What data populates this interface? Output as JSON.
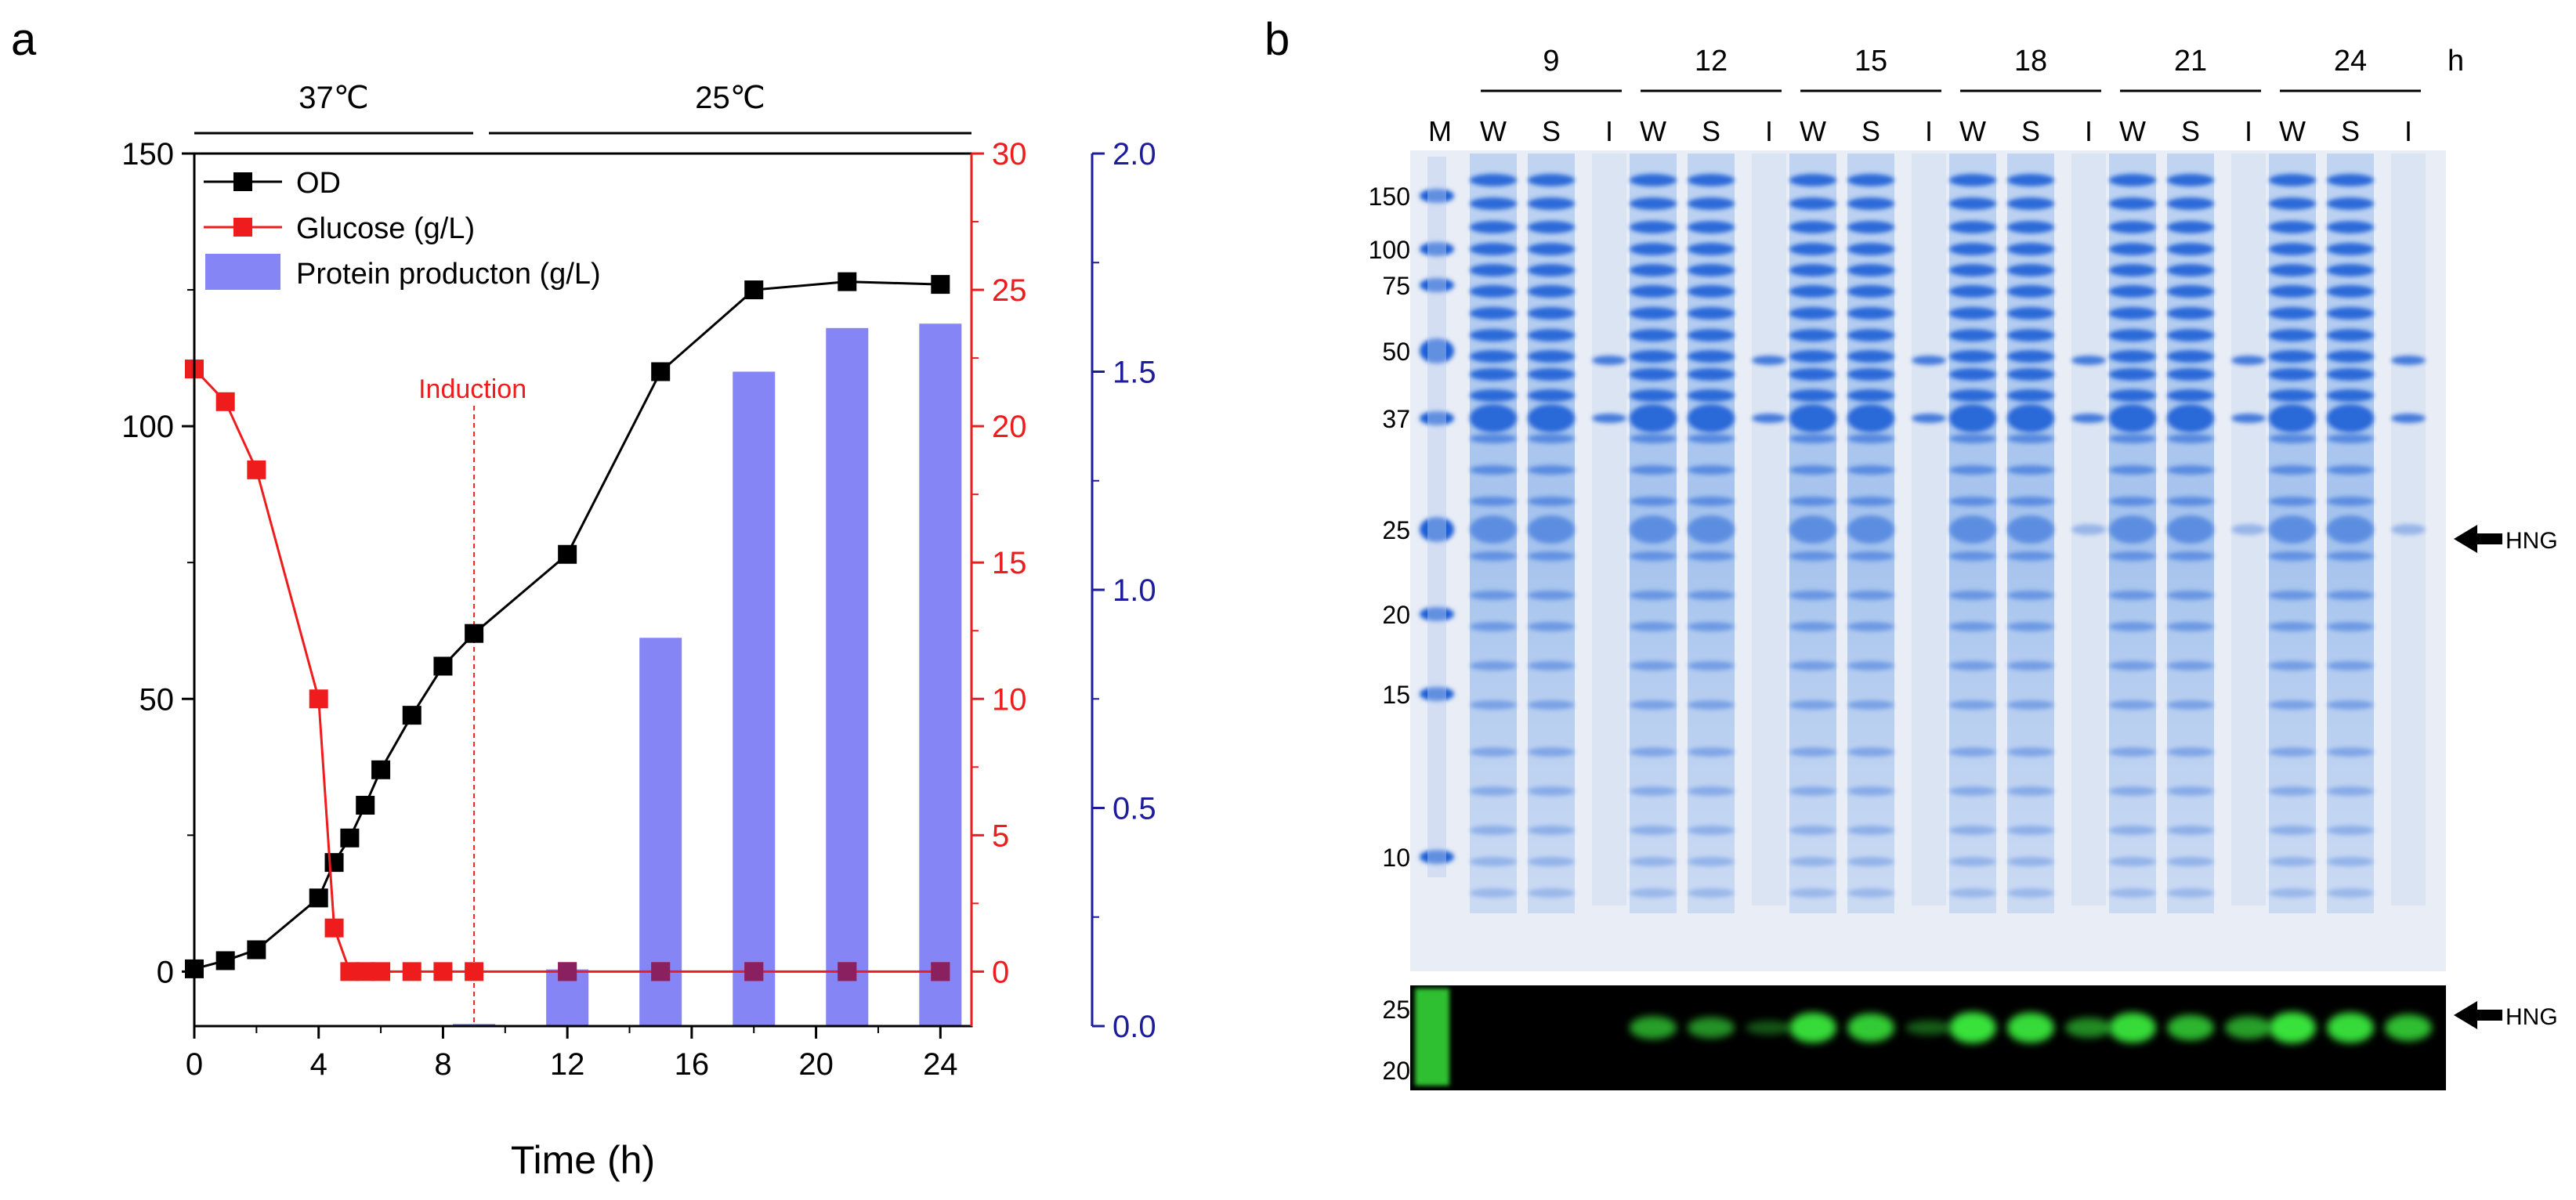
{
  "panels": {
    "a": "a",
    "b": "b"
  },
  "chart_data": {
    "type": "bar",
    "xlabel": "Time (h)",
    "xlim": [
      0,
      25
    ],
    "xticks": [
      "0",
      "4",
      "8",
      "12",
      "16",
      "20",
      "24"
    ],
    "temperature_phases": [
      {
        "label": "37℃",
        "range": [
          0,
          9
        ]
      },
      {
        "label": "25℃",
        "range": [
          9,
          25
        ]
      }
    ],
    "annotation": {
      "text": "Induction",
      "x": 9,
      "color": "#ee1c1c"
    },
    "axes": {
      "left": {
        "ylim": [
          -10,
          150
        ],
        "ticks": [
          "0",
          "50",
          "100",
          "150"
        ],
        "color": "#000000"
      },
      "right1": {
        "ylim": [
          -2,
          30
        ],
        "ticks": [
          "0",
          "5",
          "10",
          "15",
          "20",
          "25",
          "30"
        ],
        "color": "#ee1c1c"
      },
      "right2": {
        "ylim": [
          0,
          2.0
        ],
        "ticks": [
          "0.0",
          "0.5",
          "1.0",
          "1.5",
          "2.0"
        ],
        "color": "#1d1d9b"
      }
    },
    "legend": {
      "position": "top-left",
      "entries": [
        "OD",
        "Glucose (g/L)",
        "Protein producton (g/L)"
      ]
    },
    "series": [
      {
        "name": "OD",
        "type": "line",
        "axis": "left",
        "color": "#000000",
        "x": [
          0,
          1,
          2,
          4,
          4.5,
          5,
          5.5,
          6,
          7,
          8,
          9,
          12,
          15,
          18,
          21,
          24
        ],
        "y": [
          0.5,
          2,
          4,
          13.5,
          20,
          24.5,
          30.5,
          37,
          47,
          56,
          62,
          76.5,
          110,
          125,
          126.5,
          126
        ]
      },
      {
        "name": "Glucose (g/L)",
        "type": "line",
        "axis": "right1",
        "color": "#ee1c1c",
        "x": [
          0,
          1,
          2,
          4,
          4.5,
          5,
          5.5,
          6,
          7,
          8,
          9,
          12,
          15,
          18,
          21,
          24
        ],
        "y": [
          22.1,
          20.9,
          18.4,
          10,
          1.6,
          0,
          0,
          0,
          0,
          0,
          0,
          0,
          0,
          0,
          0,
          0
        ]
      },
      {
        "name": "Protein producton (g/L)",
        "type": "bar",
        "axis": "right2",
        "color": "#8585f5",
        "x": [
          9,
          12,
          15,
          18,
          21,
          24
        ],
        "y": [
          0.005,
          0.13,
          0.89,
          1.5,
          1.6,
          1.61
        ]
      }
    ]
  },
  "gel": {
    "time_groups": [
      "9",
      "12",
      "15",
      "18",
      "21",
      "24"
    ],
    "time_unit": "h",
    "marker_lane": "M",
    "lane_labels": [
      "W",
      "S",
      "I"
    ],
    "marker_sizes": [
      "150",
      "100",
      "75",
      "50",
      "37",
      "25",
      "20",
      "15",
      "10"
    ],
    "blot_marker_sizes": [
      "25",
      "20"
    ],
    "target_label": "HNG",
    "colors": {
      "gel_bg": "#e9edf6",
      "band": "#1e5fd6",
      "blot_bg": "#000000",
      "blot_band": "#38e23a"
    }
  }
}
